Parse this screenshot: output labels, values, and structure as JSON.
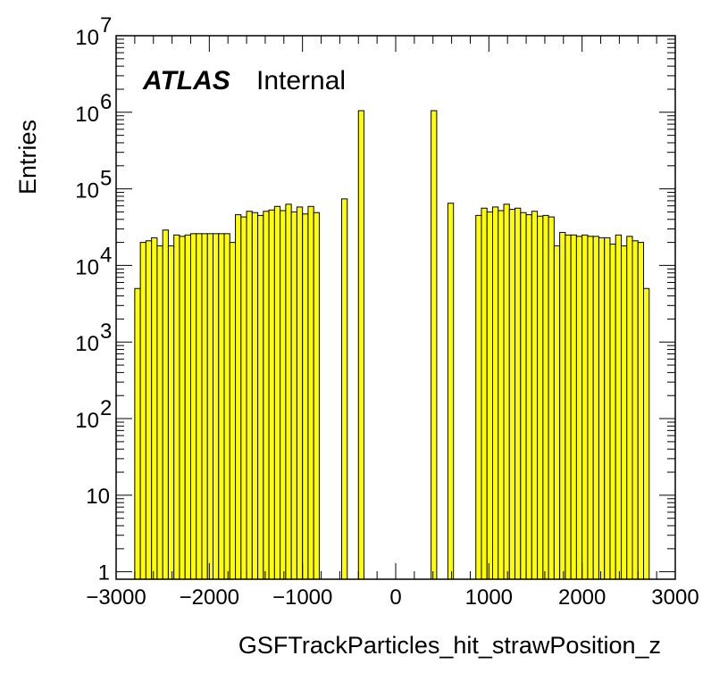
{
  "chart_data": {
    "type": "histogram",
    "xlabel": "GSFTrackParticles_hit_strawPosition_z",
    "ylabel": "Entries",
    "x_range": [
      -3000,
      3000
    ],
    "y_range": [
      0.8,
      10000000
    ],
    "y_scale": "log",
    "grid": false,
    "fill_color": "#ffff00",
    "line_color": "#000000",
    "label_text": {
      "experiment": "ATLAS",
      "status": "Internal"
    },
    "x_tick_labels": [
      {
        "value": -3000,
        "label": "−3000"
      },
      {
        "value": -2000,
        "label": "−2000"
      },
      {
        "value": -1000,
        "label": "−1000"
      },
      {
        "value": 0,
        "label": "0"
      },
      {
        "value": 1000,
        "label": "1000"
      },
      {
        "value": 2000,
        "label": "2000"
      },
      {
        "value": 3000,
        "label": "3000"
      }
    ],
    "y_tick_labels": [
      {
        "value": 1,
        "base": "1",
        "exp": ""
      },
      {
        "value": 10,
        "base": "10",
        "exp": ""
      },
      {
        "value": 100,
        "base": "10",
        "exp": "2"
      },
      {
        "value": 1000,
        "base": "10",
        "exp": "3"
      },
      {
        "value": 10000,
        "base": "10",
        "exp": "4"
      },
      {
        "value": 100000,
        "base": "10",
        "exp": "5"
      },
      {
        "value": 1000000,
        "base": "10",
        "exp": "6"
      },
      {
        "value": 10000000,
        "base": "10",
        "exp": "7"
      }
    ],
    "bin_edges": [
      -2800,
      -2740,
      -2680,
      -2620,
      -2560,
      -2500,
      -2440,
      -2380,
      -2320,
      -2260,
      -2200,
      -2140,
      -2080,
      -2020,
      -1960,
      -1900,
      -1840,
      -1780,
      -1720,
      -1660,
      -1600,
      -1540,
      -1480,
      -1420,
      -1360,
      -1300,
      -1240,
      -1180,
      -1120,
      -1060,
      -1000,
      -940,
      -880,
      -820,
      -760,
      -700,
      -640,
      -580,
      -520,
      -460,
      -400,
      -340,
      -280,
      -220,
      -160,
      -100,
      -40,
      20,
      80,
      140,
      200,
      260,
      320,
      380,
      440,
      500,
      560,
      620,
      680,
      740,
      800,
      860,
      920,
      980,
      1040,
      1100,
      1160,
      1220,
      1280,
      1340,
      1400,
      1460,
      1520,
      1580,
      1640,
      1700,
      1760,
      1820,
      1880,
      1940,
      2000,
      2060,
      2120,
      2180,
      2240,
      2300,
      2360,
      2420,
      2480,
      2540,
      2600,
      2660,
      2720,
      2780
    ],
    "counts": [
      5000,
      20000,
      21000,
      23000,
      18000,
      29000,
      18000,
      25000,
      24000,
      25000,
      26000,
      26000,
      26000,
      26000,
      26000,
      26000,
      26000,
      20000,
      46000,
      43000,
      51000,
      49000,
      45000,
      51000,
      53000,
      59000,
      52000,
      63000,
      50000,
      58000,
      47000,
      59000,
      49000,
      0,
      0,
      0,
      0,
      74000,
      0,
      0,
      1050000,
      0,
      0,
      0,
      0,
      0,
      0,
      0,
      0,
      0,
      0,
      0,
      0,
      1050000,
      0,
      0,
      65000,
      0,
      0,
      0,
      0,
      45000,
      56000,
      50000,
      58000,
      52000,
      63000,
      54000,
      56000,
      49000,
      46000,
      51000,
      44000,
      45000,
      43000,
      18000,
      27000,
      25000,
      25000,
      24000,
      25000,
      24000,
      24000,
      23000,
      23000,
      19000,
      25000,
      18000,
      24000,
      21000,
      20000,
      5000,
      0
    ]
  }
}
